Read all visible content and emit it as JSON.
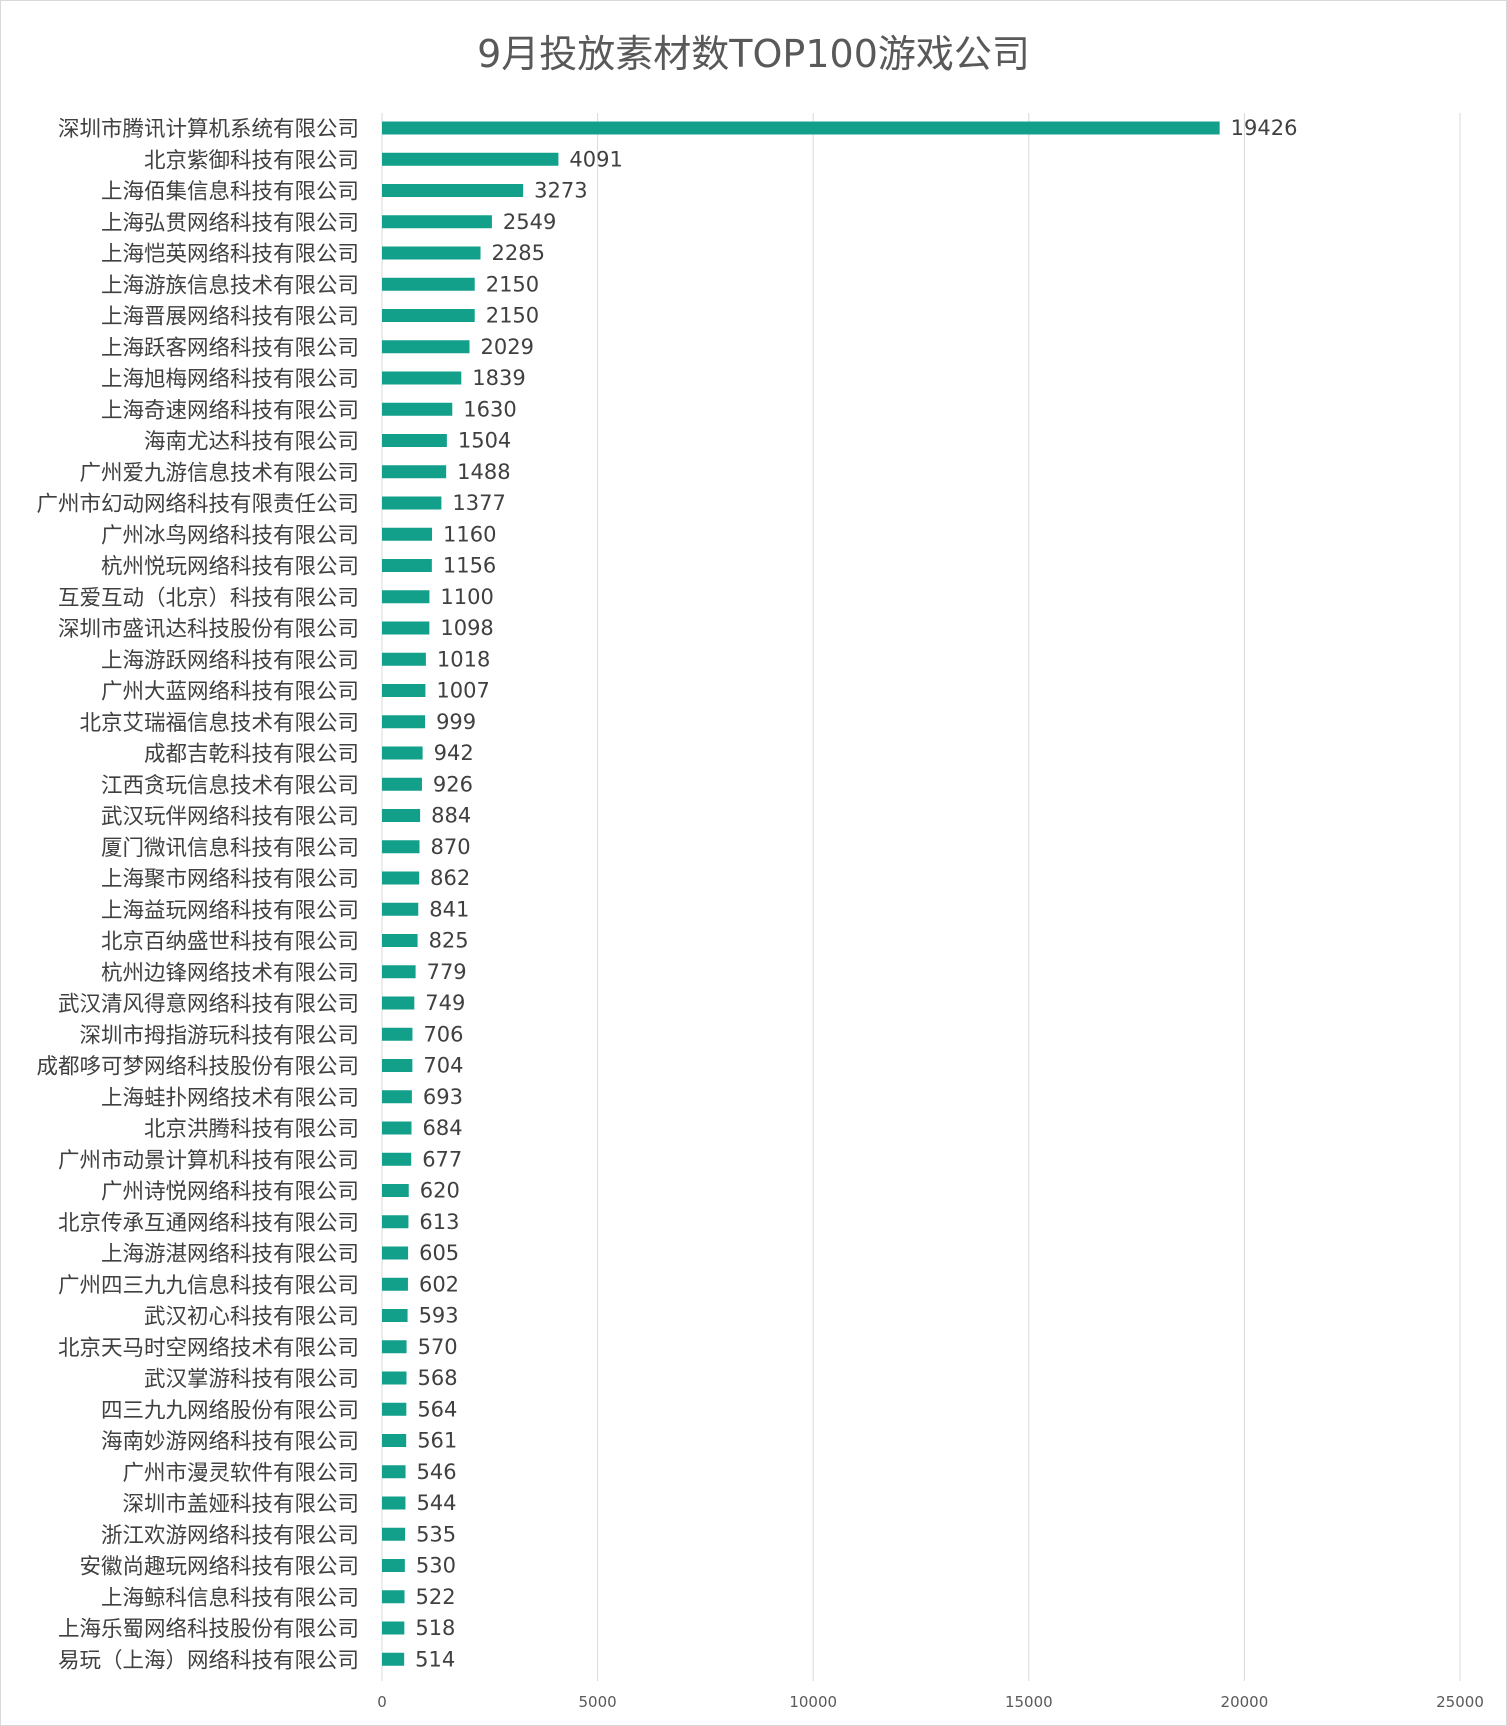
{
  "chart_data": {
    "type": "bar",
    "orientation": "horizontal",
    "title": "9月投放素材数TOP100游戏公司",
    "xlim": [
      0,
      25000
    ],
    "xticks": [
      0,
      5000,
      10000,
      15000,
      20000,
      25000
    ],
    "grid": "vertical",
    "bar_color": "#12A08A",
    "categories": [
      "深圳市腾讯计算机系统有限公司",
      "北京紫御科技有限公司",
      "上海佰集信息科技有限公司",
      "上海弘贯网络科技有限公司",
      "上海恺英网络科技有限公司",
      "上海游族信息技术有限公司",
      "上海晋展网络科技有限公司",
      "上海跃客网络科技有限公司",
      "上海旭梅网络科技有限公司",
      "上海奇速网络科技有限公司",
      "海南尤达科技有限公司",
      "广州爱九游信息技术有限公司",
      "广州市幻动网络科技有限责任公司",
      "广州冰鸟网络科技有限公司",
      "杭州悦玩网络科技有限公司",
      "互爱互动（北京）科技有限公司",
      "深圳市盛讯达科技股份有限公司",
      "上海游跃网络科技有限公司",
      "广州大蓝网络科技有限公司",
      "北京艾瑞福信息技术有限公司",
      "成都吉乾科技有限公司",
      "江西贪玩信息技术有限公司",
      "武汉玩伴网络科技有限公司",
      "厦门微讯信息科技有限公司",
      "上海聚市网络科技有限公司",
      "上海益玩网络科技有限公司",
      "北京百纳盛世科技有限公司",
      "杭州边锋网络技术有限公司",
      "武汉清风得意网络科技有限公司",
      "深圳市拇指游玩科技有限公司",
      "成都哆可梦网络科技股份有限公司",
      "上海蛙扑网络技术有限公司",
      "北京洪腾科技有限公司",
      "广州市动景计算机科技有限公司",
      "广州诗悦网络科技有限公司",
      "北京传承互通网络科技有限公司",
      "上海游湛网络科技有限公司",
      "广州四三九九信息科技有限公司",
      "武汉初心科技有限公司",
      "北京天马时空网络技术有限公司",
      "武汉掌游科技有限公司",
      "四三九九网络股份有限公司",
      "海南妙游网络科技有限公司",
      "广州市漫灵软件有限公司",
      "深圳市盖娅科技有限公司",
      "浙江欢游网络科技有限公司",
      "安徽尚趣玩网络科技有限公司",
      "上海鲸科信息科技有限公司",
      "上海乐蜀网络科技股份有限公司",
      "易玩（上海）网络科技有限公司"
    ],
    "values": [
      19426,
      4091,
      3273,
      2549,
      2285,
      2150,
      2150,
      2029,
      1839,
      1630,
      1504,
      1488,
      1377,
      1160,
      1156,
      1100,
      1098,
      1018,
      1007,
      999,
      942,
      926,
      884,
      870,
      862,
      841,
      825,
      779,
      749,
      706,
      704,
      693,
      684,
      677,
      620,
      613,
      605,
      602,
      593,
      570,
      568,
      564,
      561,
      546,
      544,
      535,
      530,
      522,
      518,
      514
    ]
  }
}
